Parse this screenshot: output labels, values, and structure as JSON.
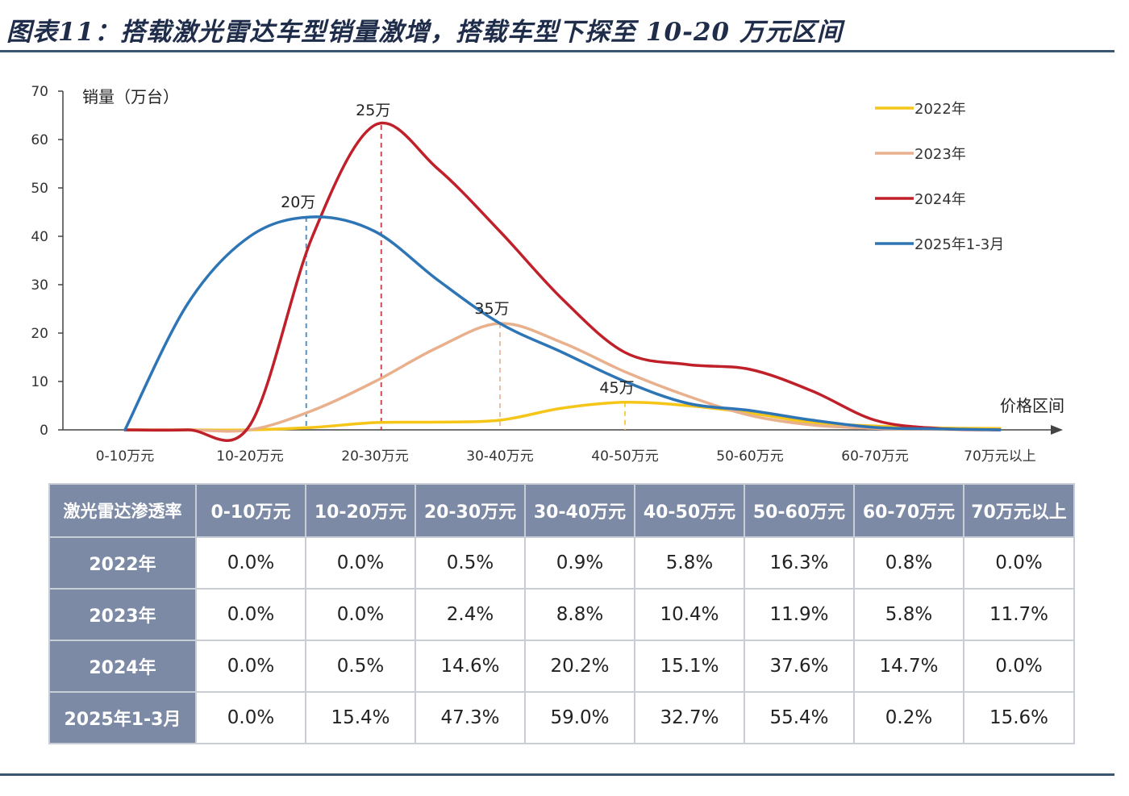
{
  "title": "图表11：搭载激光雷达车型销量激增，搭载车型下探至 10-20 万元区间",
  "chart_data": {
    "type": "line",
    "ylabel": "销量（万台）",
    "xlabel": "价格区间",
    "ylim": [
      0,
      70
    ],
    "yticks": [
      0,
      10,
      20,
      30,
      40,
      50,
      60,
      70
    ],
    "categories": [
      "0-10万元",
      "10-20万元",
      "20-30万元",
      "30-40万元",
      "40-50万元",
      "50-60万元",
      "60-70万元",
      "70万元以上"
    ],
    "series": [
      {
        "name": "2022年",
        "color": "#f5c518",
        "points": [
          [
            0.0,
            0
          ],
          [
            0.5,
            0
          ],
          [
            1.0,
            0
          ],
          [
            1.5,
            0.5
          ],
          [
            2.0,
            1.5
          ],
          [
            2.5,
            1.6
          ],
          [
            3.0,
            2
          ],
          [
            3.5,
            4.5
          ],
          [
            4.0,
            5.7
          ],
          [
            4.5,
            5
          ],
          [
            5.0,
            3.5
          ],
          [
            5.5,
            1.5
          ],
          [
            6.0,
            0.8
          ],
          [
            6.5,
            0.4
          ],
          [
            7.0,
            0.3
          ]
        ]
      },
      {
        "name": "2023年",
        "color": "#e8b08d",
        "points": [
          [
            0.0,
            0
          ],
          [
            0.5,
            0
          ],
          [
            1.0,
            0
          ],
          [
            1.5,
            4
          ],
          [
            2.0,
            10
          ],
          [
            2.5,
            17
          ],
          [
            3.0,
            22
          ],
          [
            3.5,
            18
          ],
          [
            4.0,
            12
          ],
          [
            4.5,
            7
          ],
          [
            5.0,
            3
          ],
          [
            5.5,
            1
          ],
          [
            6.0,
            0.3
          ],
          [
            6.5,
            0.1
          ],
          [
            7.0,
            0
          ]
        ]
      },
      {
        "name": "2024年",
        "color": "#c0202a",
        "points": [
          [
            0.0,
            0
          ],
          [
            0.5,
            0
          ],
          [
            1.0,
            1
          ],
          [
            1.5,
            40
          ],
          [
            2.0,
            63
          ],
          [
            2.5,
            54
          ],
          [
            3.0,
            41
          ],
          [
            3.5,
            27
          ],
          [
            4.0,
            16
          ],
          [
            4.5,
            13.5
          ],
          [
            5.0,
            12.5
          ],
          [
            5.5,
            8
          ],
          [
            6.0,
            2
          ],
          [
            6.5,
            0.3
          ],
          [
            7.0,
            0
          ]
        ]
      },
      {
        "name": "2025年1-3月",
        "color": "#2e75b6",
        "points": [
          [
            0.0,
            0
          ],
          [
            0.5,
            26
          ],
          [
            1.0,
            40
          ],
          [
            1.5,
            44
          ],
          [
            2.0,
            41
          ],
          [
            2.5,
            31
          ],
          [
            3.0,
            22
          ],
          [
            3.5,
            16
          ],
          [
            4.0,
            10
          ],
          [
            4.5,
            5.5
          ],
          [
            5.0,
            4
          ],
          [
            5.5,
            2
          ],
          [
            6.0,
            0.5
          ],
          [
            6.5,
            0.2
          ],
          [
            7.0,
            0
          ]
        ]
      }
    ],
    "annotations": [
      {
        "label": "20万",
        "x": 1.45,
        "y": 44,
        "series": "2025年1-3月"
      },
      {
        "label": "25万",
        "x": 2.05,
        "y": 63,
        "series": "2024年"
      },
      {
        "label": "35万",
        "x": 3.0,
        "y": 22,
        "series": "2023年"
      },
      {
        "label": "45万",
        "x": 4.0,
        "y": 5.7,
        "series": "2022年"
      }
    ],
    "legend_position": "top-right"
  },
  "table": {
    "corner": "激光雷达渗透率",
    "columns": [
      "0-10万元",
      "10-20万元",
      "20-30万元",
      "30-40万元",
      "40-50万元",
      "50-60万元",
      "60-70万元",
      "70万元以上"
    ],
    "rows": [
      {
        "label": "2022年",
        "values": [
          "0.0%",
          "0.0%",
          "0.5%",
          "0.9%",
          "5.8%",
          "16.3%",
          "0.8%",
          "0.0%"
        ]
      },
      {
        "label": "2023年",
        "values": [
          "0.0%",
          "0.0%",
          "2.4%",
          "8.8%",
          "10.4%",
          "11.9%",
          "5.8%",
          "11.7%"
        ]
      },
      {
        "label": "2024年",
        "values": [
          "0.0%",
          "0.5%",
          "14.6%",
          "20.2%",
          "15.1%",
          "37.6%",
          "14.7%",
          "0.0%"
        ]
      },
      {
        "label": "2025年1-3月",
        "values": [
          "0.0%",
          "15.4%",
          "47.3%",
          "59.0%",
          "32.7%",
          "55.4%",
          "0.2%",
          "15.6%"
        ]
      }
    ]
  }
}
